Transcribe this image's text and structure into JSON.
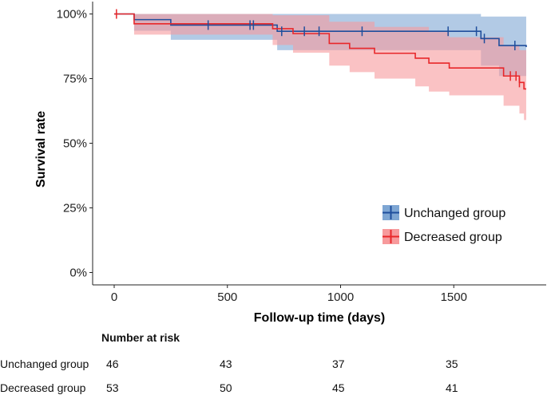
{
  "chart_data": {
    "type": "line",
    "subtype": "kaplan-meier",
    "xlabel": "Follow-up time (days)",
    "ylabel": "Survival rate",
    "xlim": [
      -100,
      1900
    ],
    "ylim": [
      0,
      1.03
    ],
    "xticks": [
      0,
      500,
      1000,
      1500
    ],
    "yticks": [
      0,
      0.25,
      0.5,
      0.75,
      1.0
    ],
    "ytick_labels": [
      "0%",
      "25%",
      "50%",
      "75%",
      "100%"
    ],
    "legend_position": "center-right",
    "series": [
      {
        "name": "Unchanged group",
        "color": "#1f4e9c",
        "band_color": "#7ea6d3",
        "steps": [
          [
            0,
            1.0
          ],
          [
            88,
            0.978
          ],
          [
            250,
            0.957
          ],
          [
            720,
            0.933
          ],
          [
            1620,
            0.905
          ],
          [
            1700,
            0.878
          ],
          [
            1820,
            0.872
          ]
        ],
        "ci_upper": [
          [
            0,
            1.0
          ],
          [
            88,
            1.0
          ],
          [
            250,
            1.0
          ],
          [
            720,
            1.0
          ],
          [
            1620,
            0.99
          ],
          [
            1820,
            0.99
          ]
        ],
        "ci_lower": [
          [
            0,
            1.0
          ],
          [
            88,
            0.935
          ],
          [
            250,
            0.9
          ],
          [
            720,
            0.86
          ],
          [
            1620,
            0.8
          ],
          [
            1700,
            0.76
          ],
          [
            1820,
            0.75
          ]
        ],
        "censored": [
          415,
          600,
          615,
          740,
          840,
          905,
          1095,
          1475,
          1600,
          1635,
          1770
        ]
      },
      {
        "name": "Decreased group",
        "color": "#e8272a",
        "band_color": "#f79a9c",
        "steps": [
          [
            0,
            1.0
          ],
          [
            88,
            0.962
          ],
          [
            700,
            0.943
          ],
          [
            790,
            0.924
          ],
          [
            950,
            0.886
          ],
          [
            1040,
            0.867
          ],
          [
            1150,
            0.848
          ],
          [
            1330,
            0.829
          ],
          [
            1390,
            0.81
          ],
          [
            1480,
            0.791
          ],
          [
            1720,
            0.76
          ],
          [
            1790,
            0.735
          ],
          [
            1810,
            0.71
          ],
          [
            1820,
            0.71
          ]
        ],
        "ci_upper": [
          [
            0,
            1.0
          ],
          [
            88,
            1.0
          ],
          [
            700,
            0.995
          ],
          [
            950,
            0.97
          ],
          [
            1150,
            0.95
          ],
          [
            1390,
            0.93
          ],
          [
            1480,
            0.91
          ],
          [
            1720,
            0.88
          ],
          [
            1790,
            0.86
          ],
          [
            1820,
            0.86
          ]
        ],
        "ci_lower": [
          [
            0,
            1.0
          ],
          [
            88,
            0.92
          ],
          [
            700,
            0.88
          ],
          [
            790,
            0.85
          ],
          [
            950,
            0.8
          ],
          [
            1040,
            0.775
          ],
          [
            1150,
            0.75
          ],
          [
            1330,
            0.72
          ],
          [
            1390,
            0.7
          ],
          [
            1480,
            0.685
          ],
          [
            1720,
            0.645
          ],
          [
            1790,
            0.615
          ],
          [
            1810,
            0.59
          ],
          [
            1820,
            0.59
          ]
        ],
        "censored": [
          10,
          1750,
          1775,
          1790
        ]
      }
    ]
  },
  "risk_table": {
    "title": "Number at risk",
    "rows": [
      {
        "label": "Unchanged group",
        "values": [
          "46",
          "43",
          "37",
          "35"
        ]
      },
      {
        "label": "Decreased group",
        "values": [
          "53",
          "50",
          "45",
          "41"
        ]
      }
    ]
  }
}
